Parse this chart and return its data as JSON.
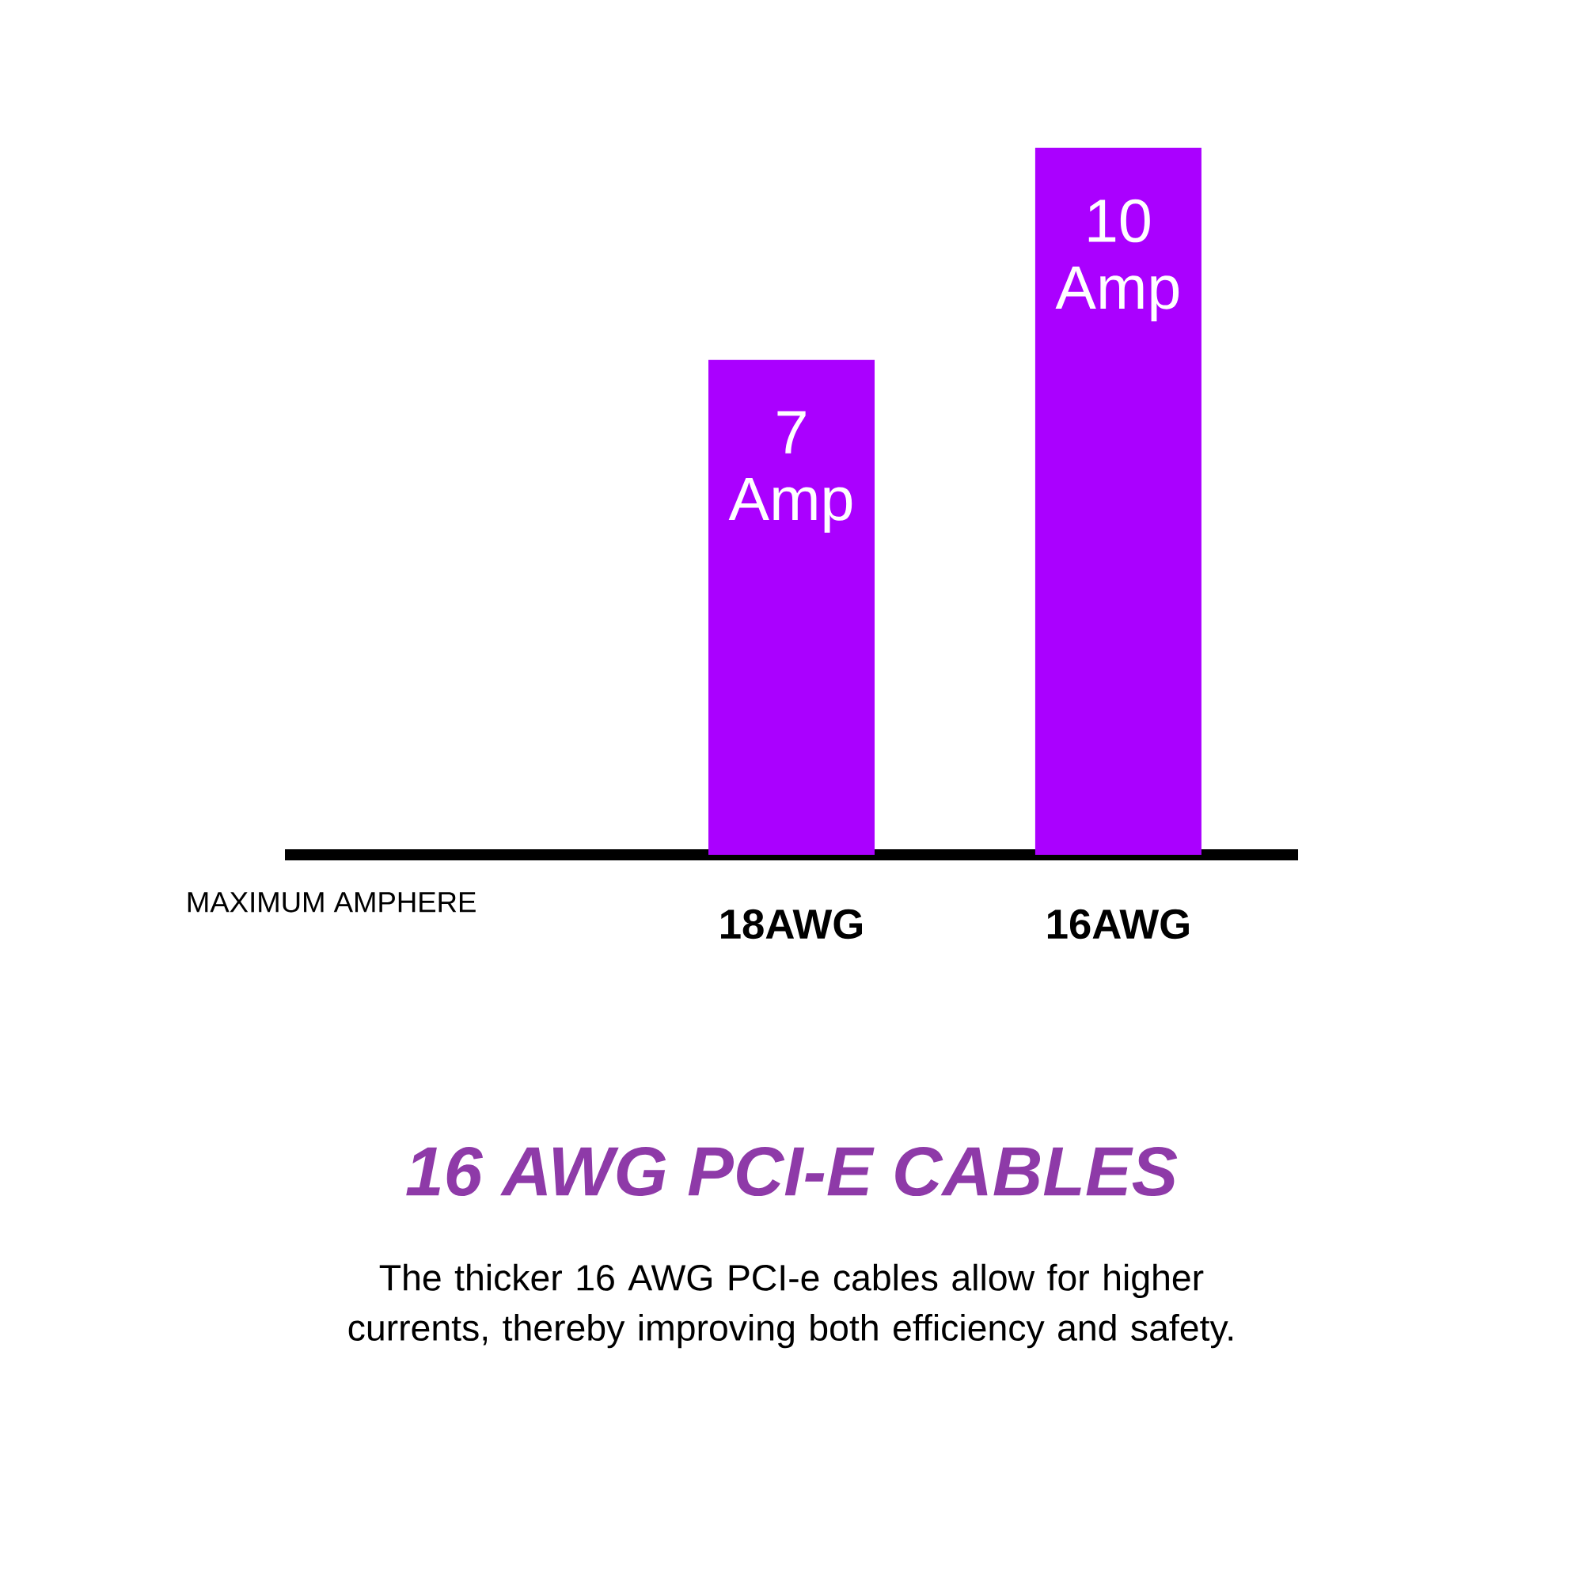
{
  "chart_data": {
    "type": "bar",
    "title": "16 AWG PCI-E CABLES",
    "subtitle": "The thicker 16 AWG PCI-e cables allow for higher currents, thereby improving both efficiency and safety.",
    "annotations": [
      "MAXIMUM AMPHERE"
    ],
    "categories": [
      "18AWG",
      "16AWG"
    ],
    "values": [
      7,
      10
    ],
    "value_labels": [
      "7 Amp",
      "10 Amp"
    ],
    "color": "#aa00ff"
  }
}
